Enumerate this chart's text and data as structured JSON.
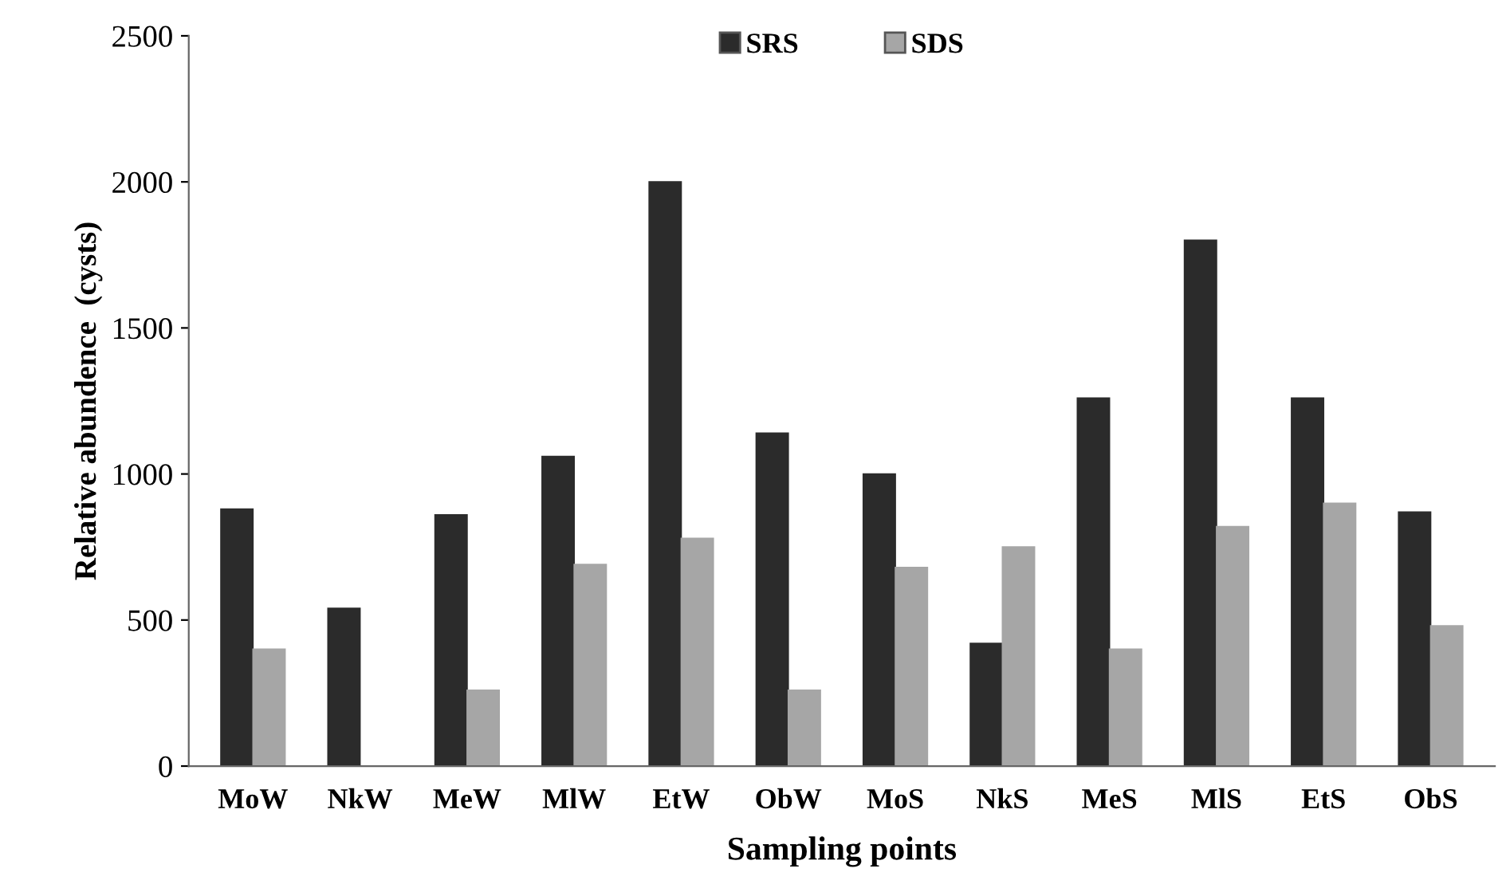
{
  "chart_data": {
    "type": "bar",
    "xlabel": "Sampling points",
    "ylabel": "Relative abundence  (cysts)",
    "categories": [
      "MoW",
      "NkW",
      "MeW",
      "MlW",
      "EtW",
      "ObW",
      "MoS",
      "NkS",
      "MeS",
      "MlS",
      "EtS",
      "ObS"
    ],
    "series": [
      {
        "name": "SRS",
        "color": "#2b2b2b",
        "values": [
          880,
          540,
          860,
          1060,
          2000,
          1140,
          1000,
          420,
          1260,
          1800,
          1260,
          870
        ]
      },
      {
        "name": "SDS",
        "color": "#a6a6a6",
        "values": [
          400,
          0,
          260,
          690,
          780,
          260,
          680,
          750,
          400,
          820,
          900,
          480
        ]
      }
    ],
    "ylim": [
      0,
      2500
    ],
    "yticks": [
      0,
      500,
      1000,
      1500,
      2000,
      2500
    ],
    "grid": false,
    "legend": "top"
  }
}
